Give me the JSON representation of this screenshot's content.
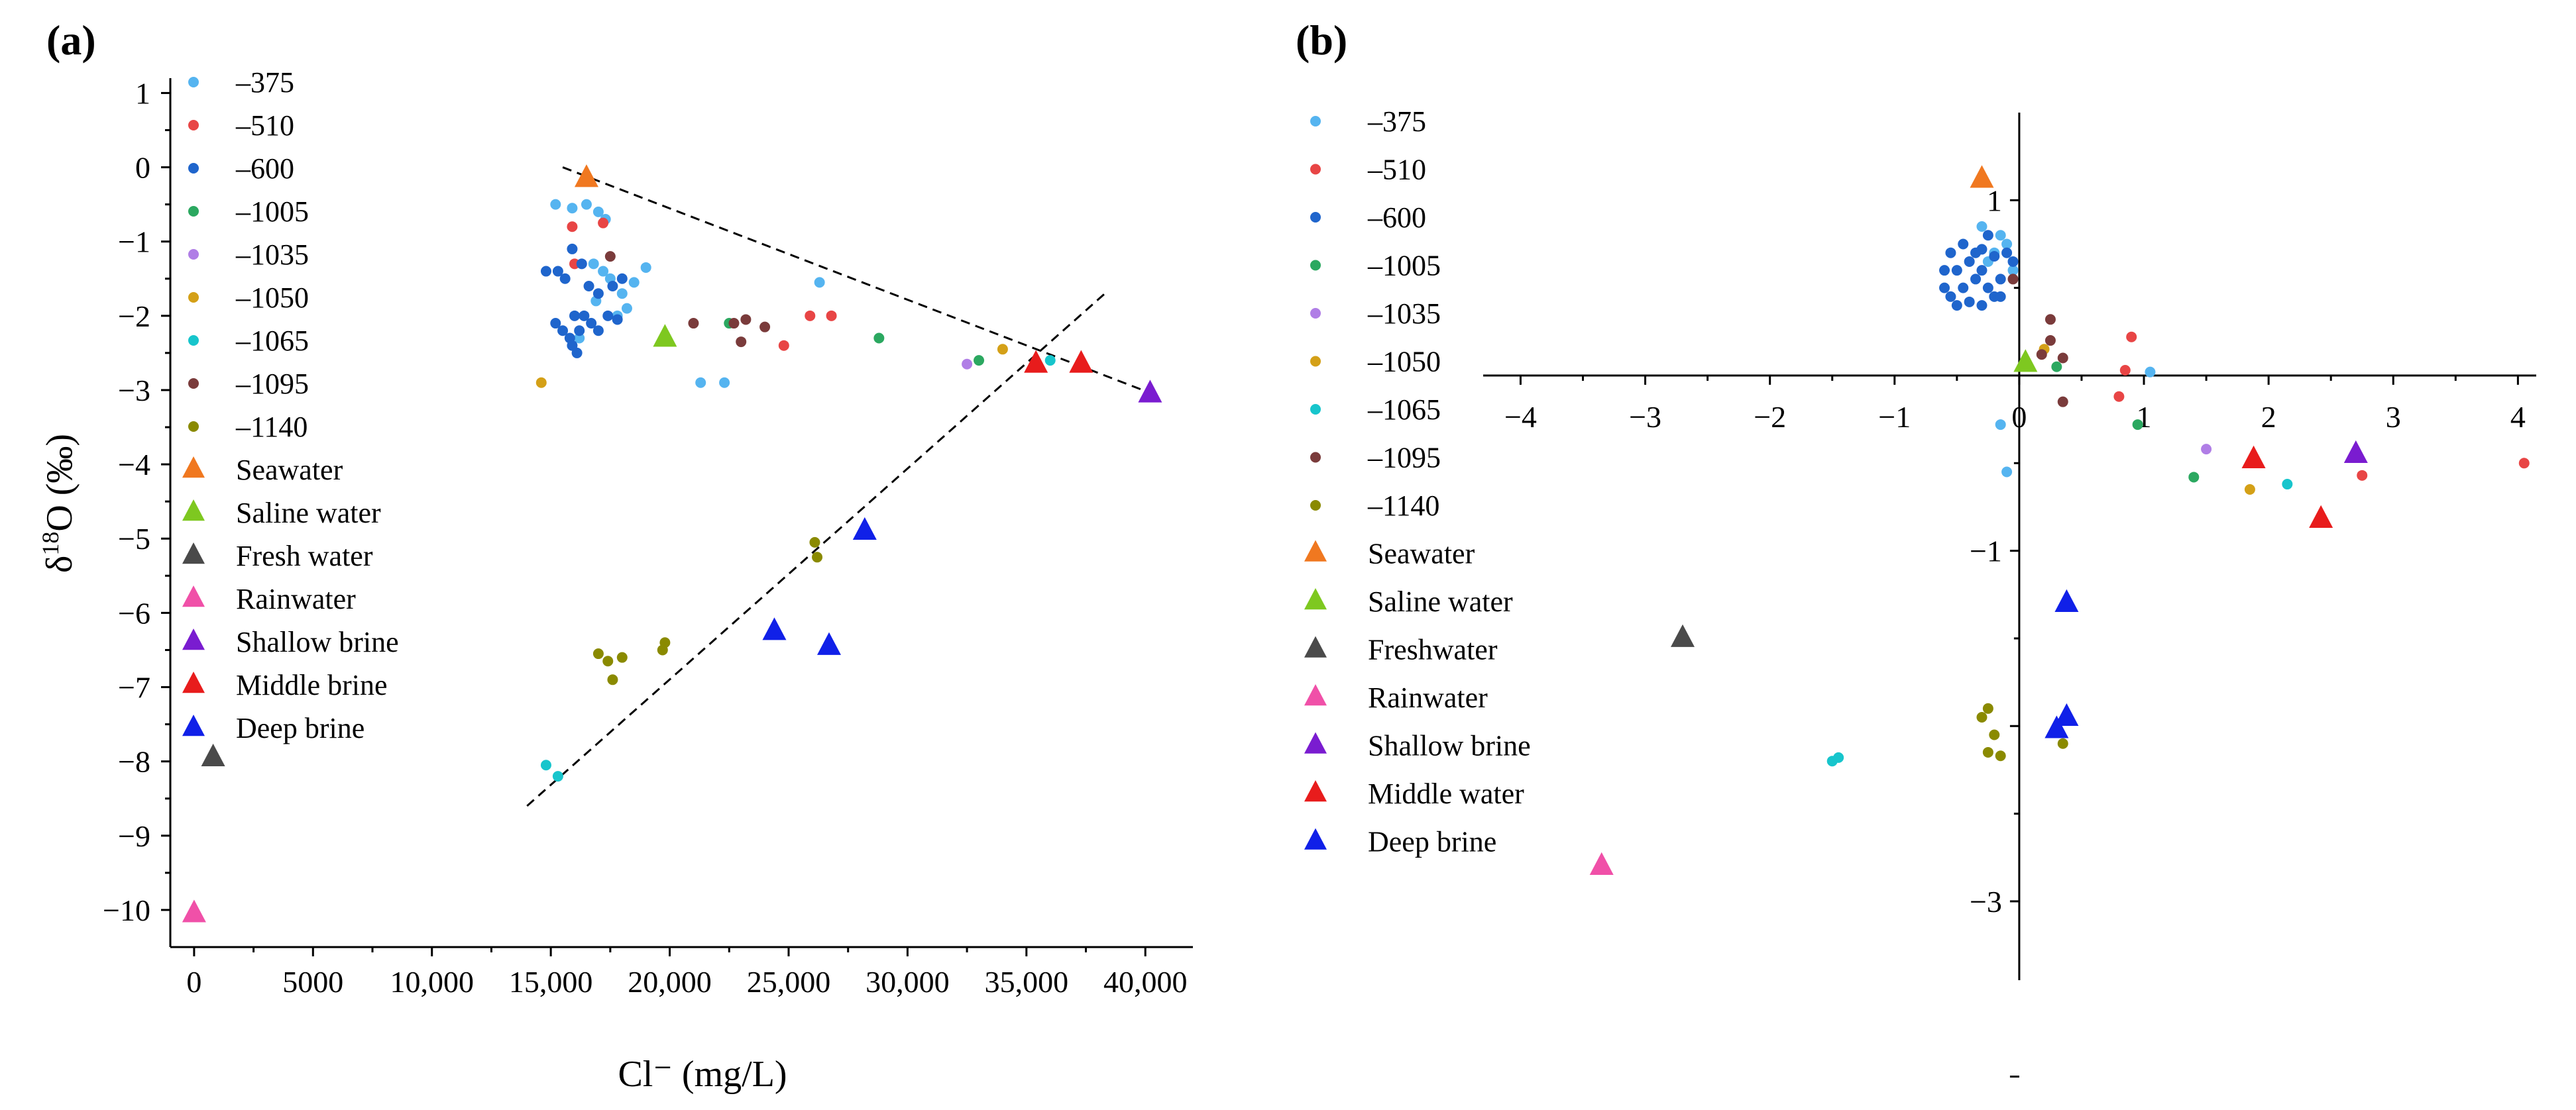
{
  "chart_data": [
    {
      "type": "scatter",
      "panel_label": "(a)",
      "xlabel": "Cl⁻ (mg/L)",
      "ylabel_prefix": "δ",
      "ylabel_sup": "18",
      "ylabel_suffix": "O (‰)",
      "xlim": [
        -1000,
        42000
      ],
      "ylim": [
        -10.5,
        1.2
      ],
      "xticks": [
        0,
        5000,
        10000,
        15000,
        20000,
        25000,
        30000,
        35000,
        40000
      ],
      "xtick_labels": [
        "0",
        "5000",
        "10,000",
        "15,000",
        "20,000",
        "25,000",
        "30,000",
        "35,000",
        "40,000"
      ],
      "yticks": [
        1,
        0,
        -1,
        -2,
        -3,
        -4,
        -5,
        -6,
        -7,
        -8,
        -9,
        -10
      ],
      "ytick_labels": [
        "1",
        "0",
        "−1",
        "−2",
        "−3",
        "−4",
        "−5",
        "−6",
        "−7",
        "−8",
        "−9",
        "−10"
      ],
      "series": [
        {
          "name": "–375",
          "marker": "dot",
          "color": "#55b4f0",
          "points": [
            [
              15200,
              -0.5
            ],
            [
              15900,
              -0.55
            ],
            [
              16500,
              -0.5
            ],
            [
              17000,
              -0.6
            ],
            [
              17300,
              -0.7
            ],
            [
              16800,
              -1.3
            ],
            [
              17200,
              -1.4
            ],
            [
              17500,
              -1.5
            ],
            [
              18000,
              -1.7
            ],
            [
              18500,
              -1.55
            ],
            [
              19000,
              -1.35
            ],
            [
              18200,
              -1.9
            ],
            [
              17800,
              -2.0
            ],
            [
              16900,
              -1.8
            ],
            [
              16200,
              -2.3
            ],
            [
              21300,
              -2.9
            ],
            [
              22300,
              -2.9
            ],
            [
              26300,
              -1.55
            ]
          ]
        },
        {
          "name": "–510",
          "marker": "dot",
          "color": "#e84545",
          "points": [
            [
              15900,
              -0.8
            ],
            [
              16000,
              -1.3
            ],
            [
              17200,
              -0.75
            ],
            [
              24800,
              -2.4
            ],
            [
              25900,
              -2.0
            ],
            [
              26800,
              -2.0
            ]
          ]
        },
        {
          "name": "–600",
          "marker": "dot",
          "color": "#1f65cc",
          "points": [
            [
              14800,
              -1.4
            ],
            [
              15300,
              -1.4
            ],
            [
              15600,
              -1.5
            ],
            [
              15900,
              -1.1
            ],
            [
              16300,
              -1.3
            ],
            [
              16600,
              -1.6
            ],
            [
              17000,
              -1.7
            ],
            [
              15200,
              -2.1
            ],
            [
              15500,
              -2.2
            ],
            [
              15800,
              -2.3
            ],
            [
              16100,
              -2.5
            ],
            [
              16000,
              -2.0
            ],
            [
              16400,
              -2.0
            ],
            [
              16700,
              -2.1
            ],
            [
              17000,
              -2.2
            ],
            [
              17400,
              -2.0
            ],
            [
              17800,
              -2.05
            ],
            [
              15900,
              -2.4
            ],
            [
              16200,
              -2.2
            ],
            [
              18000,
              -1.5
            ],
            [
              17600,
              -1.6
            ]
          ]
        },
        {
          "name": "–1005",
          "marker": "dot",
          "color": "#2ba860",
          "points": [
            [
              22500,
              -2.1
            ],
            [
              28800,
              -2.3
            ],
            [
              33000,
              -2.6
            ]
          ]
        },
        {
          "name": "–1035",
          "marker": "dot",
          "color": "#b07ee6",
          "points": [
            [
              32500,
              -2.65
            ]
          ]
        },
        {
          "name": "–1050",
          "marker": "dot",
          "color": "#d4a017",
          "points": [
            [
              14600,
              -2.9
            ],
            [
              34000,
              -2.45
            ]
          ]
        },
        {
          "name": "–1065",
          "marker": "dot",
          "color": "#17c5cc",
          "points": [
            [
              14800,
              -8.05
            ],
            [
              15300,
              -8.2
            ],
            [
              36000,
              -2.6
            ]
          ]
        },
        {
          "name": "–1095",
          "marker": "dot",
          "color": "#7a3b3b",
          "points": [
            [
              17500,
              -1.2
            ],
            [
              21000,
              -2.1
            ],
            [
              22700,
              -2.1
            ],
            [
              23200,
              -2.05
            ],
            [
              24000,
              -2.15
            ],
            [
              23000,
              -2.35
            ]
          ]
        },
        {
          "name": "–1140",
          "marker": "dot",
          "color": "#8a8a00",
          "points": [
            [
              17000,
              -6.55
            ],
            [
              17400,
              -6.65
            ],
            [
              18000,
              -6.6
            ],
            [
              17600,
              -6.9
            ],
            [
              19800,
              -6.4
            ],
            [
              19700,
              -6.5
            ],
            [
              26100,
              -5.05
            ],
            [
              26200,
              -5.25
            ]
          ]
        },
        {
          "name": "Seawater",
          "marker": "triangle",
          "color": "#f07820",
          "points": [
            [
              16500,
              -0.15
            ]
          ]
        },
        {
          "name": "Saline water",
          "marker": "triangle",
          "color": "#7ec820",
          "points": [
            [
              19800,
              -2.3
            ]
          ]
        },
        {
          "name": "Fresh water",
          "marker": "triangle",
          "color": "#4a4a4a",
          "points": [
            [
              800,
              -7.95
            ]
          ]
        },
        {
          "name": "Rainwater",
          "marker": "triangle",
          "color": "#f050a8",
          "points": [
            [
              0,
              -10.05
            ]
          ]
        },
        {
          "name": "Shallow brine",
          "marker": "triangle",
          "color": "#7a1cd0",
          "points": [
            [
              40200,
              -3.05
            ]
          ]
        },
        {
          "name": "Middle brine",
          "marker": "triangle",
          "color": "#e81c1c",
          "points": [
            [
              35400,
              -2.65
            ],
            [
              37300,
              -2.65
            ]
          ]
        },
        {
          "name": "Deep brine",
          "marker": "triangle",
          "color": "#1020e8",
          "points": [
            [
              28200,
              -4.9
            ],
            [
              24400,
              -6.25
            ],
            [
              26700,
              -6.45
            ]
          ]
        }
      ],
      "trendlines": [
        {
          "name": "mixing-line-upper",
          "from": [
            15500,
            0.0
          ],
          "to": [
            40300,
            -3.05
          ]
        },
        {
          "name": "mixing-line-lower",
          "from": [
            14000,
            -8.6
          ],
          "to": [
            38300,
            -1.7
          ]
        }
      ]
    },
    {
      "type": "scatter",
      "panel_label": "(b)",
      "xlabel": "",
      "ylabel": "",
      "xlim": [
        -4.3,
        4.2
      ],
      "ylim": [
        -3.45,
        1.5
      ],
      "xticks": [
        -4,
        -3,
        -2,
        -1,
        0,
        1,
        2,
        3,
        4
      ],
      "xtick_labels": [
        "−4",
        "−3",
        "−2",
        "−1",
        "0",
        "1",
        "2",
        "3",
        "4"
      ],
      "yticks": [
        1,
        0,
        -1,
        -3
      ],
      "ytick_labels": [
        "1",
        "0",
        "−1",
        "−3"
      ],
      "series": [
        {
          "name": "–375",
          "marker": "dot",
          "color": "#55b4f0",
          "points": [
            [
              -0.3,
              0.85
            ],
            [
              -0.15,
              0.8
            ],
            [
              -0.1,
              0.75
            ],
            [
              -0.2,
              0.7
            ],
            [
              -0.05,
              0.6
            ],
            [
              -0.25,
              0.65
            ],
            [
              1.05,
              0.02
            ],
            [
              -0.15,
              -0.28
            ],
            [
              -0.1,
              -0.55
            ]
          ]
        },
        {
          "name": "–510",
          "marker": "dot",
          "color": "#e84545",
          "points": [
            [
              0.9,
              0.22
            ],
            [
              0.85,
              0.03
            ],
            [
              0.8,
              -0.12
            ],
            [
              2.75,
              -0.57
            ],
            [
              4.05,
              -0.5
            ]
          ]
        },
        {
          "name": "–600",
          "marker": "dot",
          "color": "#1f65cc",
          "points": [
            [
              -0.6,
              0.5
            ],
            [
              -0.55,
              0.45
            ],
            [
              -0.5,
              0.6
            ],
            [
              -0.45,
              0.75
            ],
            [
              -0.4,
              0.65
            ],
            [
              -0.35,
              0.55
            ],
            [
              -0.3,
              0.6
            ],
            [
              -0.25,
              0.5
            ],
            [
              -0.2,
              0.45
            ],
            [
              -0.15,
              0.55
            ],
            [
              -0.5,
              0.4
            ],
            [
              -0.45,
              0.5
            ],
            [
              -0.4,
              0.42
            ],
            [
              -0.35,
              0.7
            ],
            [
              -0.3,
              0.72
            ],
            [
              -0.25,
              0.8
            ],
            [
              -0.2,
              0.68
            ],
            [
              -0.1,
              0.7
            ],
            [
              -0.05,
              0.65
            ],
            [
              -0.6,
              0.6
            ],
            [
              -0.55,
              0.7
            ],
            [
              -0.3,
              0.4
            ],
            [
              -0.15,
              0.45
            ]
          ]
        },
        {
          "name": "–1005",
          "marker": "dot",
          "color": "#2ba860",
          "points": [
            [
              0.3,
              0.05
            ],
            [
              0.95,
              -0.28
            ],
            [
              1.4,
              -0.58
            ]
          ]
        },
        {
          "name": "–1035",
          "marker": "dot",
          "color": "#b07ee6",
          "points": [
            [
              1.5,
              -0.42
            ]
          ]
        },
        {
          "name": "–1050",
          "marker": "dot",
          "color": "#d4a017",
          "points": [
            [
              0.2,
              0.15
            ],
            [
              1.85,
              -0.65
            ]
          ]
        },
        {
          "name": "–1065",
          "marker": "dot",
          "color": "#17c5cc",
          "points": [
            [
              -1.5,
              -2.2
            ],
            [
              -1.45,
              -2.18
            ],
            [
              2.15,
              -0.62
            ]
          ]
        },
        {
          "name": "–1095",
          "marker": "dot",
          "color": "#7a3b3b",
          "points": [
            [
              0.25,
              0.32
            ],
            [
              0.25,
              0.2
            ],
            [
              0.18,
              0.12
            ],
            [
              0.35,
              0.1
            ],
            [
              -0.05,
              0.55
            ],
            [
              0.35,
              -0.15
            ]
          ]
        },
        {
          "name": "–1140",
          "marker": "dot",
          "color": "#8a8a00",
          "points": [
            [
              -0.3,
              -1.95
            ],
            [
              -0.25,
              -1.9
            ],
            [
              -0.2,
              -2.05
            ],
            [
              0.35,
              -2.1
            ],
            [
              -0.25,
              -2.15
            ],
            [
              -0.15,
              -2.17
            ]
          ]
        },
        {
          "name": "Seawater",
          "marker": "triangle",
          "color": "#f07820",
          "points": [
            [
              -0.3,
              1.12
            ]
          ]
        },
        {
          "name": "Saline water",
          "marker": "triangle",
          "color": "#7ec820",
          "points": [
            [
              0.05,
              0.07
            ]
          ]
        },
        {
          "name": "Freshwater",
          "marker": "triangle",
          "color": "#4a4a4a",
          "points": [
            [
              -2.7,
              -1.5
            ]
          ]
        },
        {
          "name": "Rainwater",
          "marker": "triangle",
          "color": "#f050a8",
          "points": [
            [
              -3.35,
              -2.8
            ]
          ]
        },
        {
          "name": "Shallow brine",
          "marker": "triangle",
          "color": "#7a1cd0",
          "points": [
            [
              2.7,
              -0.45
            ]
          ]
        },
        {
          "name": "Middle water",
          "marker": "triangle",
          "color": "#e81c1c",
          "points": [
            [
              1.88,
              -0.48
            ],
            [
              2.42,
              -0.82
            ]
          ]
        },
        {
          "name": "Deep brine",
          "marker": "triangle",
          "color": "#1020e8",
          "points": [
            [
              0.38,
              -1.3
            ],
            [
              0.38,
              -1.95
            ],
            [
              0.3,
              -2.02
            ]
          ]
        }
      ]
    }
  ]
}
